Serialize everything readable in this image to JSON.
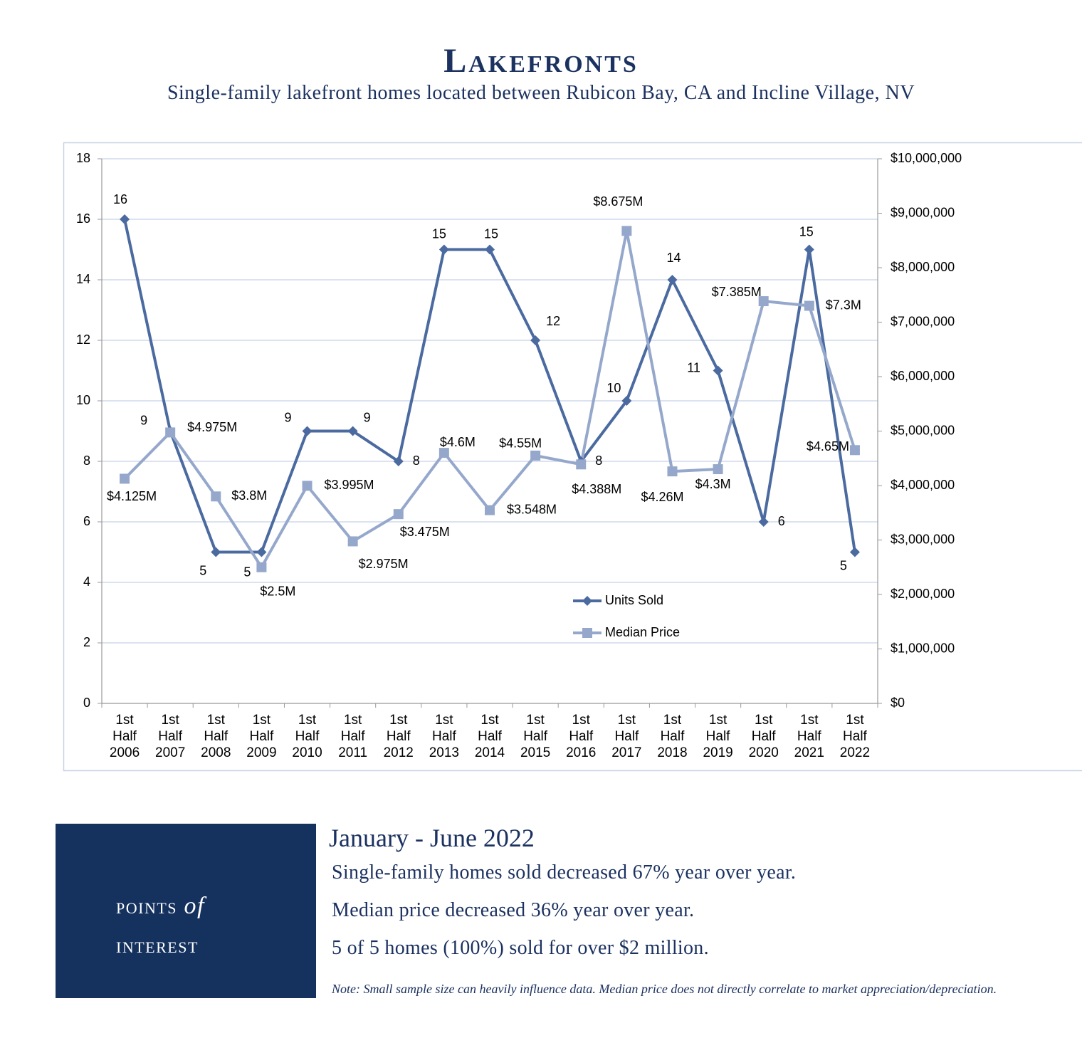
{
  "chart_data": {
    "type": "line",
    "title": "Lakefronts",
    "subtitle": "Single-family lakefront homes located between Rubicon Bay, CA and Incline Village, NV",
    "categories": [
      "1st Half 2006",
      "1st Half 2007",
      "1st Half 2008",
      "1st Half 2009",
      "1st Half 2010",
      "1st Half 2011",
      "1st Half 2012",
      "1st Half 2013",
      "1st Half 2014",
      "1st Half 2015",
      "1st Half 2016",
      "1st Half 2017",
      "1st Half 2018",
      "1st Half 2019",
      "1st Half 2020",
      "1st Half 2021",
      "1st Half 2022"
    ],
    "series": [
      {
        "name": "Units Sold",
        "color": "#4a6aa0",
        "marker": "diamond",
        "values": [
          16,
          9,
          5,
          5,
          9,
          9,
          8,
          15,
          15,
          12,
          8,
          10,
          14,
          11,
          6,
          15,
          5
        ]
      },
      {
        "name": "Median Price",
        "color": "#95a8cc",
        "marker": "square",
        "axis": "y2",
        "values": [
          4125000,
          4975000,
          3800000,
          2500000,
          3995000,
          2975000,
          3475000,
          4600000,
          3548000,
          4550000,
          4388000,
          8675000,
          4260000,
          4300000,
          7385000,
          7300000,
          4650000
        ],
        "value_labels": [
          "$4.125M",
          "$4.975M",
          "$3.8M",
          "$2.5M",
          "$3.995M",
          "$2.975M",
          "$3.475M",
          "$4.6M",
          "$3.548M",
          "$4.55M",
          "$4.388M",
          "$8.675M",
          "$4.26M",
          "$4.3M",
          "$7.385M",
          "$7.3M",
          "$4.65M"
        ]
      }
    ],
    "ylim": [
      0,
      18
    ],
    "yticks": [
      0,
      2,
      4,
      6,
      8,
      10,
      12,
      14,
      16,
      18
    ],
    "y2lim": [
      0,
      10000000
    ],
    "y2ticks": [
      {
        "value": 0,
        "label": "$0"
      },
      {
        "value": 1000000,
        "label": "$1,000,000"
      },
      {
        "value": 2000000,
        "label": "$2,000,000"
      },
      {
        "value": 3000000,
        "label": "$3,000,000"
      },
      {
        "value": 4000000,
        "label": "$4,000,000"
      },
      {
        "value": 5000000,
        "label": "$5,000,000"
      },
      {
        "value": 6000000,
        "label": "$6,000,000"
      },
      {
        "value": 7000000,
        "label": "$7,000,000"
      },
      {
        "value": 8000000,
        "label": "$8,000,000"
      },
      {
        "value": 9000000,
        "label": "$9,000,000"
      },
      {
        "value": 10000000,
        "label": "$10,000,000"
      }
    ],
    "grid": true,
    "legend": "bottom-center"
  },
  "points_of_interest": {
    "label": [
      "points",
      "of",
      "interest"
    ],
    "heading": "January - June 2022",
    "items": [
      "Single-family homes sold decreased 67% year over year.",
      "Median price decreased 36% year over year.",
      "5 of 5 homes (100%) sold for over $2 million."
    ],
    "note": "Note: Small sample size can heavily influence data. Median price does not directly correlate to market appreciation/depreciation."
  }
}
